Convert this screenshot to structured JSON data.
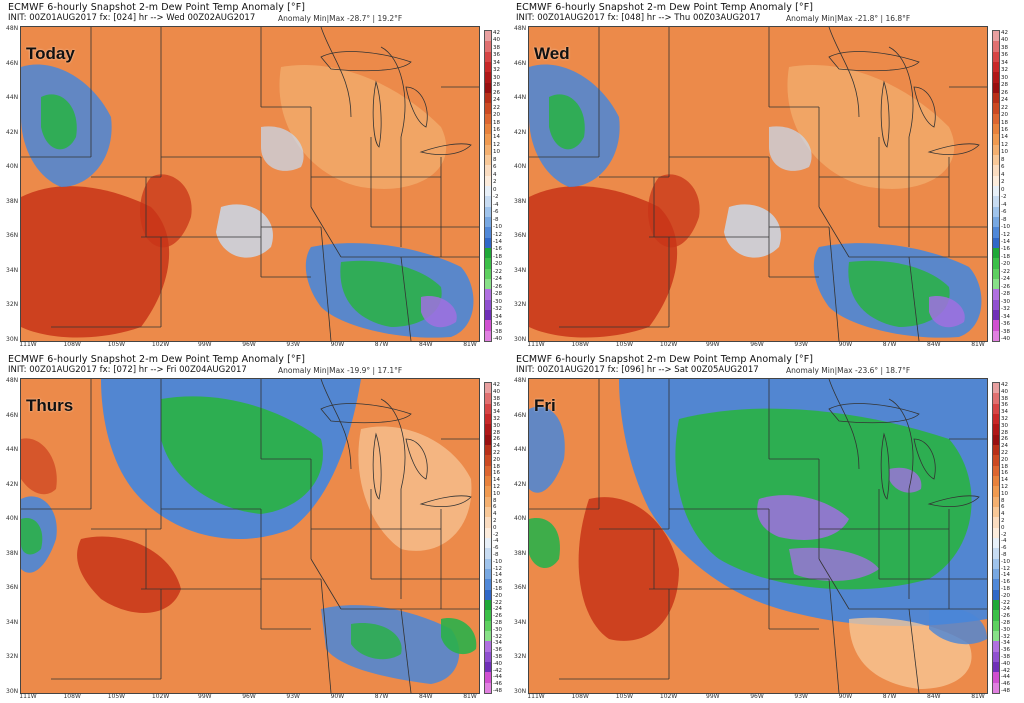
{
  "panels": [
    {
      "header_line1": "ECMWF 6-hourly Snapshot 2-m Dew Point Temp Anomaly [°F]",
      "header_line2": "INIT: 00Z01AUG2017 fx: [024] hr --> Wed 00Z02AUG2017",
      "minmax": "Anomaly Min|Max -28.7° | 19.2°F",
      "label": "Today",
      "theme": "warm"
    },
    {
      "header_line1": "ECMWF 6-hourly Snapshot 2-m Dew Point Temp Anomaly [°F]",
      "header_line2": "INIT: 00Z01AUG2017 fx: [048] hr --> Thu 00Z03AUG2017",
      "minmax": "Anomaly Min|Max -21.8° | 16.8°F",
      "label": "Wed",
      "theme": "warm"
    },
    {
      "header_line1": "ECMWF 6-hourly Snapshot 2-m Dew Point Temp Anomaly [°F]",
      "header_line2": "INIT: 00Z01AUG2017 fx: [072] hr --> Fri 00Z04AUG2017",
      "minmax": "Anomaly Min|Max -19.9° | 17.1°F",
      "label": "Thurs",
      "theme": "mixed"
    },
    {
      "header_line1": "ECMWF 6-hourly Snapshot 2-m Dew Point Temp Anomaly [°F]",
      "header_line2": "INIT: 00Z01AUG2017 fx: [096] hr --> Sat 00Z05AUG2017",
      "minmax": "Anomaly Min|Max -23.6° | 18.7°F",
      "label": "Fri",
      "theme": "cool"
    }
  ],
  "latitude_labels": [
    "48N",
    "46N",
    "44N",
    "42N",
    "40N",
    "38N",
    "36N",
    "34N",
    "32N",
    "30N"
  ],
  "longitude_labels": [
    "111W",
    "108W",
    "105W",
    "102W",
    "99W",
    "96W",
    "93W",
    "90W",
    "87W",
    "84W",
    "81W"
  ],
  "colorbar": {
    "ticks_top": [
      "42",
      "40",
      "38",
      "36",
      "34",
      "32",
      "30",
      "28",
      "26",
      "24",
      "22",
      "20",
      "18",
      "16",
      "14",
      "12",
      "10",
      "8",
      "6",
      "4",
      "2",
      "0",
      "-2",
      "-4",
      "-6",
      "-8",
      "-10",
      "-12",
      "-14",
      "-16",
      "-18",
      "-20",
      "-22",
      "-24",
      "-26",
      "-28",
      "-30",
      "-32",
      "-34",
      "-36",
      "-38",
      "-40"
    ],
    "ticks_bottom": [
      "42",
      "40",
      "38",
      "36",
      "34",
      "32",
      "30",
      "28",
      "26",
      "24",
      "22",
      "20",
      "18",
      "16",
      "14",
      "12",
      "10",
      "8",
      "6",
      "4",
      "2",
      "0",
      "-2",
      "-4",
      "-6",
      "-8",
      "-10",
      "-12",
      "-14",
      "-16",
      "-18",
      "-20",
      "-22",
      "-24",
      "-26",
      "-28",
      "-30",
      "-32",
      "-34",
      "-36",
      "-38",
      "-40",
      "-42",
      "-44",
      "-46",
      "-48"
    ],
    "colors": [
      "#e8a0a0",
      "#e07070",
      "#d64545",
      "#c82828",
      "#b01818",
      "#981010",
      "#b83018",
      "#cc4a22",
      "#dd6630",
      "#e8823c",
      "#f09a50",
      "#f4b070",
      "#f8c898",
      "#fadcc0",
      "#fcecdc",
      "#e8f0f8",
      "#c8dcf2",
      "#a0c4ec",
      "#78a8e2",
      "#5088d8",
      "#3068c8",
      "#1fa838",
      "#3cc048",
      "#5ed060",
      "#88e088",
      "#b070e0",
      "#9050d0",
      "#7030b8",
      "#d050d0",
      "#e080e0"
    ]
  },
  "colors": {
    "warm_main": "#ec8a4a",
    "warm_dark": "#c83418",
    "blue": "#4a86d8",
    "green": "#2bb04a",
    "purple": "#a070e0"
  }
}
